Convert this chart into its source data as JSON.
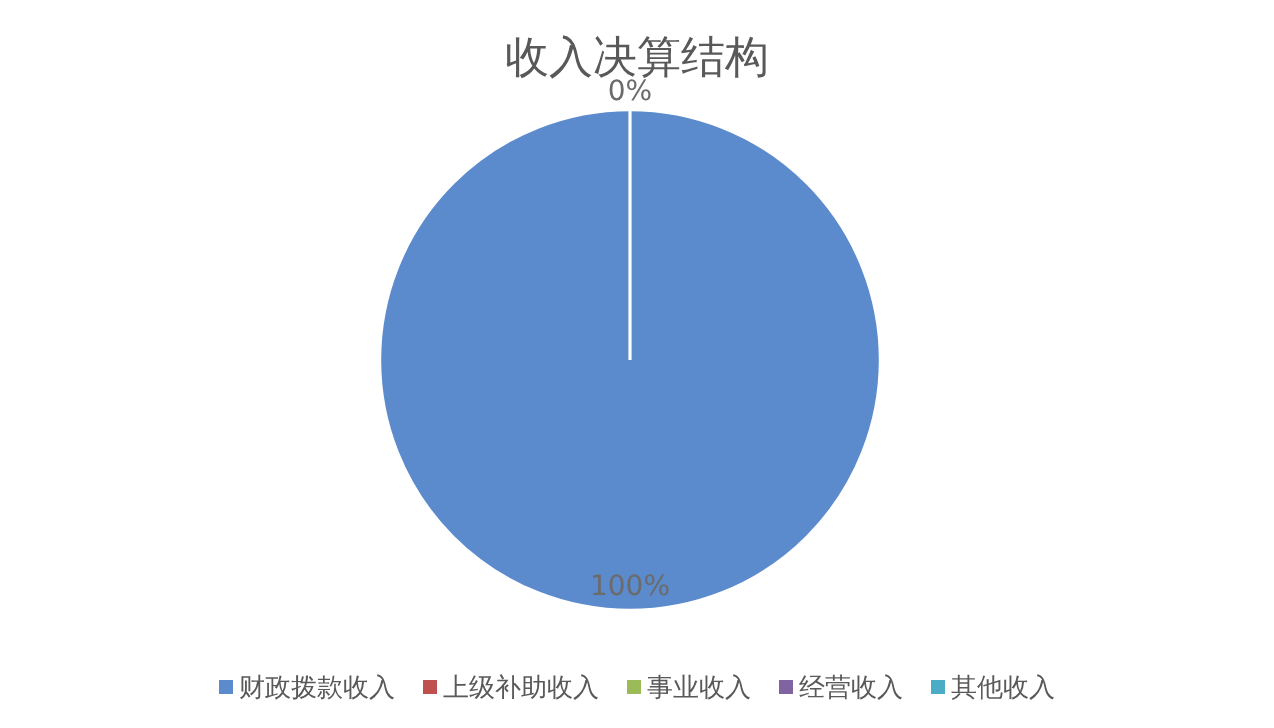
{
  "chart_data": {
    "type": "pie",
    "title": "收入决算结构",
    "categories": [
      "财政拨款收入",
      "上级补助收入",
      "事业收入",
      "经营收入",
      "其他收入"
    ],
    "values": [
      100,
      0,
      0,
      0,
      0
    ],
    "colors": [
      "#5b8bcd",
      "#c0504d",
      "#9bbb59",
      "#8064a2",
      "#4bacc6"
    ],
    "value_labels": [
      "100%",
      "0%",
      null,
      null,
      null
    ],
    "legend": "bottom"
  }
}
